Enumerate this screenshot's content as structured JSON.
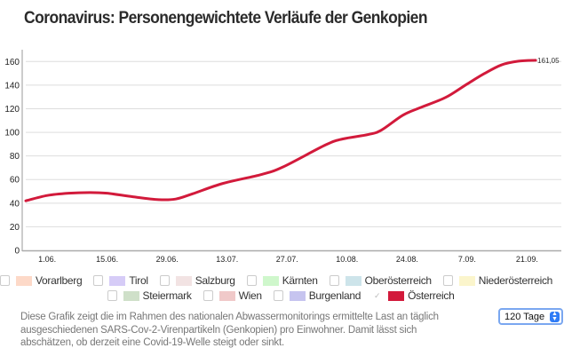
{
  "title": "Coronavirus: Personengewichtete Verläufe der Genkopien",
  "chart_data": {
    "type": "line",
    "title": "Coronavirus: Personengewichtete Verläufe der Genkopien",
    "xlabel": "",
    "ylabel": "",
    "ylim": [
      0,
      160
    ],
    "xlim": [
      "27.05.",
      "29.09."
    ],
    "y_ticks": [
      "0",
      "20",
      "40",
      "60",
      "80",
      "100",
      "120",
      "140",
      "160"
    ],
    "x_ticks": [
      "1.06.",
      "15.06.",
      "29.06.",
      "13.07.",
      "27.07.",
      "10.08.",
      "24.08.",
      "7.09.",
      "21.09."
    ],
    "grid": true,
    "series": [
      {
        "name": "Österreich",
        "color": "#d21a3b",
        "points": [
          [
            "27.05.",
            42
          ],
          [
            "01.06.",
            46.5
          ],
          [
            "06.06.",
            48.4
          ],
          [
            "11.06.",
            49
          ],
          [
            "15.06.",
            48.4
          ],
          [
            "21.06.",
            45.4
          ],
          [
            "27.06.",
            43
          ],
          [
            "01.07.",
            43.5
          ],
          [
            "05.07.",
            48
          ],
          [
            "12.07.",
            56.7
          ],
          [
            "21.07.",
            64.3
          ],
          [
            "26.07.",
            70.6
          ],
          [
            "05.08.",
            89.4
          ],
          [
            "09.08.",
            94.4
          ],
          [
            "15.08.",
            98.2
          ],
          [
            "18.08.",
            101.9
          ],
          [
            "23.08.",
            114.5
          ],
          [
            "27.08.",
            120.8
          ],
          [
            "02.09.",
            129.6
          ],
          [
            "07.09.",
            140.9
          ],
          [
            "11.09.",
            149.7
          ],
          [
            "15.09.",
            157.1
          ],
          [
            "19.09.",
            160.3
          ],
          [
            "23.09.",
            161.05
          ]
        ],
        "end_label": "161,05"
      }
    ]
  },
  "legend": [
    [
      {
        "label": "Vorarlberg",
        "color": "#fdd9c8",
        "checked": false
      },
      {
        "label": "Tirol",
        "color": "#d6ccf7",
        "checked": false
      },
      {
        "label": "Salzburg",
        "color": "#f2e3e3",
        "checked": false
      },
      {
        "label": "Kärnten",
        "color": "#cff7cc",
        "checked": false
      },
      {
        "label": "Oberösterreich",
        "color": "#cde4ea",
        "checked": false
      },
      {
        "label": "Niederösterreich",
        "color": "#fbf5cc",
        "checked": false
      }
    ],
    [
      {
        "label": "Steiermark",
        "color": "#cfe0c9",
        "checked": false
      },
      {
        "label": "Wien",
        "color": "#f0c9c9",
        "checked": false
      },
      {
        "label": "Burgenland",
        "color": "#c6c4ef",
        "checked": false
      },
      {
        "label": "Österreich",
        "color": "#d21a3b",
        "checked": true
      }
    ]
  ],
  "description": "Diese Grafik zeigt die im Rahmen des nationalen Abwassermonitorings ermittelte Last an täglich ausgeschiedenen SARS-Cov-2-Virenpartikeln (Genkopien) pro Einwohner. Damit lässt sich abschätzen, ob derzeit eine Covid-19-Welle steigt oder sinkt.",
  "range_select": {
    "value": "120 Tage"
  }
}
